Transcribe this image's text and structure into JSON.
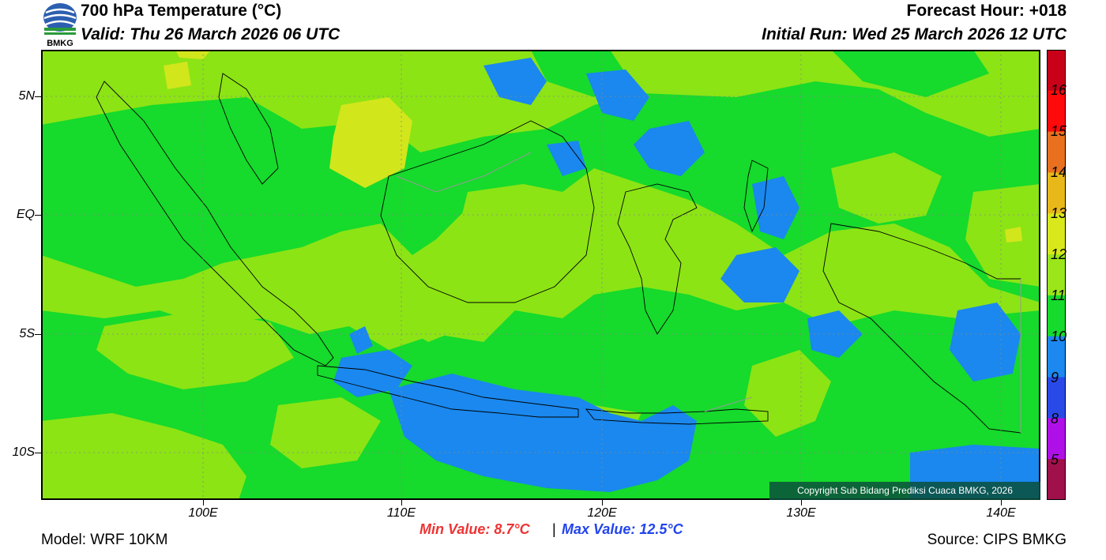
{
  "header": {
    "logo_text": "BMKG",
    "title": "700 hPa Temperature (°C)",
    "valid": "Valid: Thu 26 March 2026 06 UTC",
    "forecast_hour": "Forecast Hour: +018",
    "initial_run": "Initial Run: Wed 25 March 2026 12 UTC"
  },
  "axes": {
    "y_labels": [
      "5N",
      "EQ",
      "5S",
      "10S"
    ],
    "x_labels": [
      "100E",
      "110E",
      "120E",
      "130E",
      "140E"
    ]
  },
  "legend": {
    "labels": [
      "16",
      "15",
      "14",
      "13",
      "12",
      "11",
      "10",
      "9",
      "8",
      "5"
    ],
    "colors": [
      "#c80018",
      "#ff0a0a",
      "#e8701e",
      "#e8b81a",
      "#d8e81a",
      "#9ae61a",
      "#16da2c",
      "#1c88f0",
      "#2a4ae8",
      "#b010e8",
      "#a0104a"
    ]
  },
  "palette": {
    "lime": "#8ce414",
    "green": "#16da2c",
    "yellow": "#d2e61c",
    "blue": "#1a88ee"
  },
  "stats": {
    "min": "Min Value: 8.7°C",
    "separator": "|",
    "max": "Max Value: 12.5°C",
    "min_color": "#ee3333",
    "max_color": "#2244ee"
  },
  "footer": {
    "model": "Model: WRF 10KM",
    "source": "Source: CIPS BMKG",
    "copyright": "Copyright Sub Bidang Prediksi Cuaca BMKG, 2026"
  }
}
